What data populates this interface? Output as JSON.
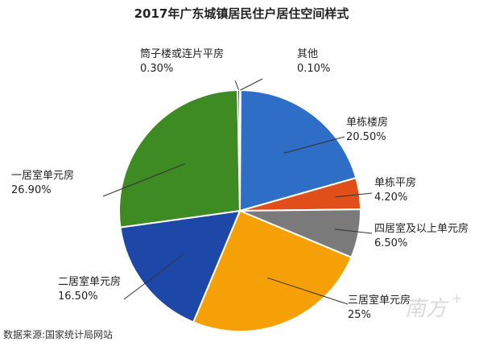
{
  "chart_data": {
    "type": "pie",
    "title": "2017年广东城镇居民住户居住空间样式",
    "slices": [
      {
        "name": "其他",
        "value": 0.1,
        "label": "0.10%",
        "color": "#1f3a93"
      },
      {
        "name": "单栋楼房",
        "value": 20.5,
        "label": "20.50%",
        "color": "#2f6ec7"
      },
      {
        "name": "单栋平房",
        "value": 4.2,
        "label": "4.20%",
        "color": "#e04f19"
      },
      {
        "name": "四居室及以上单元房",
        "value": 6.5,
        "label": "6.50%",
        "color": "#7a7a7a"
      },
      {
        "name": "三居室单元房",
        "value": 25,
        "label": "25%",
        "color": "#f5a007"
      },
      {
        "name": "二居室单元房",
        "value": 16.5,
        "label": "16.50%",
        "color": "#1d48a8"
      },
      {
        "name": "一居室单元房",
        "value": 26.9,
        "label": "26.90%",
        "color": "#3e8a23"
      },
      {
        "name": "筒子楼或连片平房",
        "value": 0.3,
        "label": "0.30%",
        "color": "#222222"
      }
    ],
    "start_angle_deg": 0,
    "direction": "clockwise"
  },
  "source": "数据来源:国家统计局网站",
  "watermark": {
    "text": "南方",
    "plus": "+"
  }
}
